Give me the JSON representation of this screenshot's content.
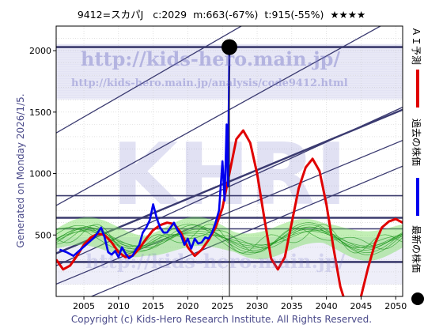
{
  "header": {
    "code_name": "9412=スカパJ",
    "current": "c:2029",
    "max": "m:663(-67%)",
    "target": "t:915(-55%)",
    "stars": "★★★★"
  },
  "side_label": "Generated on Monday 2026/1/5.",
  "footer": "Copyright (c) Kids-Hero Research Institute. All Rights Reserved.",
  "watermark": {
    "main_url": "http://kids-hero.main.jp/",
    "analysis_url": "http://kids-hero.main.jp/analysis/code9412.html",
    "logo": "KHRI"
  },
  "legend": [
    {
      "label": "ＡＩ予測",
      "color": "#e00000",
      "kind": "line"
    },
    {
      "label": "過去の株価",
      "color": "#0000ee",
      "kind": "line"
    },
    {
      "label": "最新の株価",
      "color": "#000000",
      "kind": "dot"
    }
  ],
  "chart_data": {
    "type": "line",
    "xlim": [
      2001,
      2051
    ],
    "ylim": [
      0,
      2200
    ],
    "xticks": [
      2005,
      2010,
      2015,
      2020,
      2025,
      2030,
      2035,
      2040,
      2045,
      2050
    ],
    "yticks": [
      500,
      1000,
      1500,
      2000
    ],
    "grid": true,
    "latest": {
      "x": 2026.0,
      "y": 2029
    },
    "horizontal_levels": [
      2029,
      820,
      640,
      550,
      280
    ],
    "series": [
      {
        "key": "past",
        "x": [
          2001.5,
          2002.5,
          2003.5,
          2004.5,
          2005.5,
          2006.5,
          2007.0,
          2007.5,
          2008.0,
          2008.5,
          2009.0,
          2009.5,
          2010.0,
          2010.5,
          2011.0,
          2011.5,
          2012.0,
          2012.5,
          2013.0,
          2013.5,
          2014.0,
          2014.5,
          2015.0,
          2015.5,
          2016.0,
          2016.5,
          2017.0,
          2017.5,
          2018.0,
          2018.5,
          2019.0,
          2019.5,
          2020.0,
          2020.5,
          2021.0,
          2021.5,
          2022.0,
          2022.5,
          2023.0,
          2023.5,
          2024.0,
          2024.5,
          2025.0,
          2025.3,
          2025.6,
          2025.8,
          2026.0
        ],
        "y": [
          380,
          360,
          330,
          380,
          430,
          480,
          520,
          560,
          480,
          360,
          340,
          370,
          320,
          400,
          350,
          310,
          330,
          380,
          420,
          520,
          560,
          620,
          750,
          640,
          560,
          520,
          520,
          560,
          600,
          540,
          500,
          420,
          470,
          390,
          470,
          430,
          440,
          480,
          470,
          520,
          600,
          700,
          1100,
          780,
          1400,
          900,
          2029
        ]
      },
      {
        "key": "ai_forecast",
        "x": [
          2001,
          2002,
          2003,
          2004,
          2005,
          2006,
          2007,
          2008,
          2009,
          2010,
          2011,
          2012,
          2013,
          2014,
          2015,
          2016,
          2017,
          2018,
          2019,
          2020,
          2021,
          2022,
          2023,
          2024,
          2025,
          2026,
          2027,
          2028,
          2029,
          2030,
          2031,
          2032,
          2033,
          2034,
          2035,
          2036,
          2037,
          2038,
          2039,
          2040,
          2041,
          2042,
          2043,
          2044,
          2045,
          2046,
          2047,
          2048,
          2049,
          2050,
          2051
        ],
        "y": [
          300,
          220,
          250,
          330,
          420,
          480,
          510,
          500,
          440,
          360,
          320,
          330,
          390,
          470,
          540,
          580,
          600,
          590,
          520,
          400,
          330,
          380,
          460,
          560,
          720,
          1000,
          1280,
          1350,
          1250,
          1000,
          650,
          310,
          220,
          320,
          600,
          880,
          1050,
          1120,
          1020,
          750,
          400,
          80,
          -100,
          -130,
          0,
          230,
          430,
          560,
          610,
          630,
          600
        ]
      }
    ]
  }
}
